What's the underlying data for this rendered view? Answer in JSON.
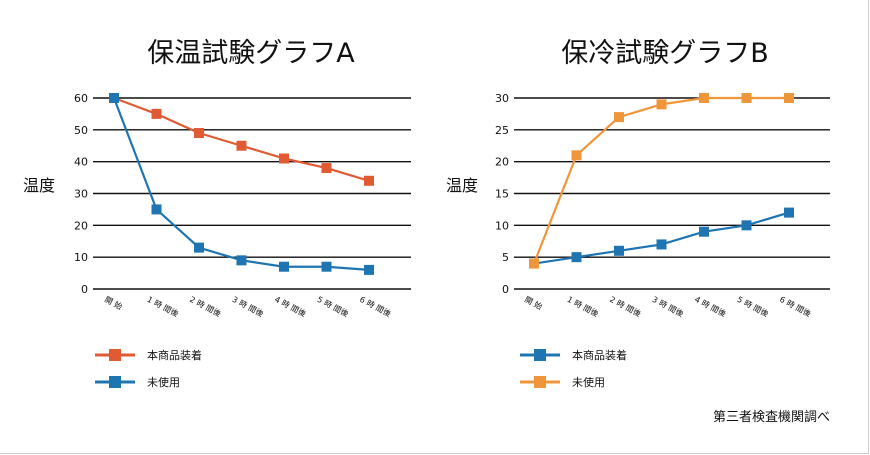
{
  "colors": {
    "orange_red": "#e05a33",
    "blue": "#1f74b2",
    "orange": "#f0963a"
  },
  "footer": {
    "credit": "第三者検査機関調べ"
  },
  "chart_data": [
    {
      "type": "line",
      "title": "保温試験グラフA",
      "ylabel": "温度",
      "ylim": [
        0,
        60
      ],
      "yticks": [
        0,
        10,
        20,
        30,
        40,
        50,
        60
      ],
      "categories": [
        "開 始",
        "1 時 間後",
        "2 時 間後",
        "3 時 間後",
        "4 時 間後",
        "5 時 間後",
        "6 時 間後"
      ],
      "series": [
        {
          "name": "本商品装着",
          "color": "#e05a33",
          "values": [
            60,
            55,
            49,
            45,
            41,
            38,
            34
          ]
        },
        {
          "name": "未使用",
          "color": "#1f74b2",
          "values": [
            60,
            25,
            13,
            9,
            7,
            7,
            6
          ]
        }
      ],
      "grid": true,
      "legend": "bottom-left"
    },
    {
      "type": "line",
      "title": "保冷試験グラフB",
      "ylabel": "温度",
      "ylim": [
        0,
        30
      ],
      "yticks": [
        0,
        5,
        10,
        15,
        20,
        25,
        30
      ],
      "categories": [
        "開 始",
        "1 時 間後",
        "2 時 間後",
        "3 時 間後",
        "4 時 間後",
        "5 時 間後",
        "6 時 間後"
      ],
      "series": [
        {
          "name": "本商品装着",
          "color": "#1f74b2",
          "values": [
            4,
            5,
            6,
            7,
            9,
            10,
            12
          ]
        },
        {
          "name": "未使用",
          "color": "#f0963a",
          "values": [
            4,
            21,
            27,
            29,
            30,
            30,
            30
          ]
        }
      ],
      "grid": true,
      "legend": "bottom-left"
    }
  ]
}
